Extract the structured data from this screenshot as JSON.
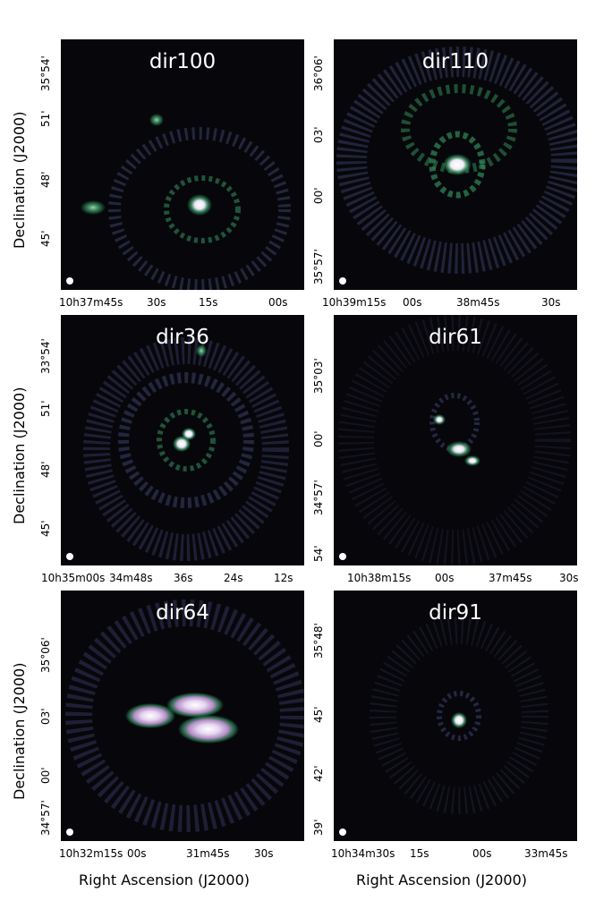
{
  "axis_labels": {
    "y": "Declination (J2000)",
    "x": "Right Ascension (J2000)"
  },
  "colors": {
    "background": "#07070b",
    "ring": "#3b3f6a",
    "core": "#2f8a5a",
    "bright": "#ffffff",
    "emission": "#c49ad8"
  },
  "panels": [
    {
      "title": "dir100",
      "y_ticks": [
        "35°54'",
        "51'",
        "48'",
        "45'"
      ],
      "x_ticks": [
        "10h37m45s",
        "30s",
        "15s",
        "00s"
      ]
    },
    {
      "title": "dir110",
      "y_ticks": [
        "36°06'",
        "03'",
        "00'",
        "35°57'"
      ],
      "x_ticks": [
        "10h39m15s",
        "00s",
        "38m45s",
        "30s"
      ]
    },
    {
      "title": "dir36",
      "y_ticks": [
        "33°54'",
        "51'",
        "48'",
        "45'"
      ],
      "x_ticks": [
        "10h35m00s",
        "34m48s",
        "36s",
        "24s",
        "12s"
      ]
    },
    {
      "title": "dir61",
      "y_ticks": [
        "35°03'",
        "00'",
        "34°57'",
        "54'"
      ],
      "x_ticks": [
        "10h38m15s",
        "00s",
        "37m45s",
        "30s"
      ]
    },
    {
      "title": "dir64",
      "y_ticks": [
        "35°06'",
        "03'",
        "00'",
        "34°57'"
      ],
      "x_ticks": [
        "10h32m15s",
        "00s",
        "31m45s",
        "30s"
      ]
    },
    {
      "title": "dir91",
      "y_ticks": [
        "35°48'",
        "45'",
        "42'",
        "39'"
      ],
      "x_ticks": [
        "10h34m30s",
        "15s",
        "00s",
        "33m45s"
      ]
    }
  ]
}
